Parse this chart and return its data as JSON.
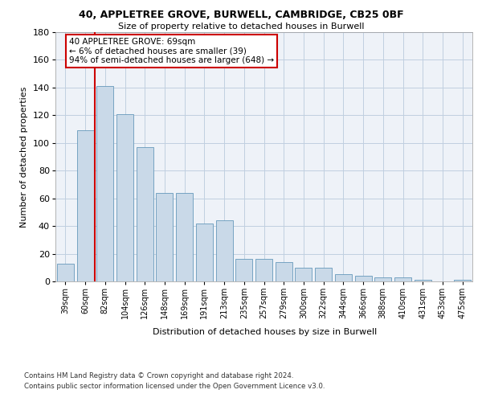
{
  "title1": "40, APPLETREE GROVE, BURWELL, CAMBRIDGE, CB25 0BF",
  "title2": "Size of property relative to detached houses in Burwell",
  "xlabel": "Distribution of detached houses by size in Burwell",
  "ylabel": "Number of detached properties",
  "categories": [
    "39sqm",
    "60sqm",
    "82sqm",
    "104sqm",
    "126sqm",
    "148sqm",
    "169sqm",
    "191sqm",
    "213sqm",
    "235sqm",
    "257sqm",
    "279sqm",
    "300sqm",
    "322sqm",
    "344sqm",
    "366sqm",
    "388sqm",
    "410sqm",
    "431sqm",
    "453sqm",
    "475sqm"
  ],
  "values": [
    13,
    109,
    141,
    121,
    97,
    64,
    64,
    42,
    44,
    16,
    16,
    14,
    10,
    10,
    5,
    4,
    3,
    3,
    1,
    0,
    1
  ],
  "bar_color": "#c9d9e8",
  "bar_edge_color": "#6699bb",
  "grid_color": "#c0cfe0",
  "background_color": "#eef2f8",
  "annotation_line1": "40 APPLETREE GROVE: 69sqm",
  "annotation_line2": "← 6% of detached houses are smaller (39)",
  "annotation_line3": "94% of semi-detached houses are larger (648) →",
  "annotation_box_edge": "#cc0000",
  "vline_color": "#cc0000",
  "ylim": [
    0,
    180
  ],
  "yticks": [
    0,
    20,
    40,
    60,
    80,
    100,
    120,
    140,
    160,
    180
  ],
  "footer1": "Contains HM Land Registry data © Crown copyright and database right 2024.",
  "footer2": "Contains public sector information licensed under the Open Government Licence v3.0."
}
